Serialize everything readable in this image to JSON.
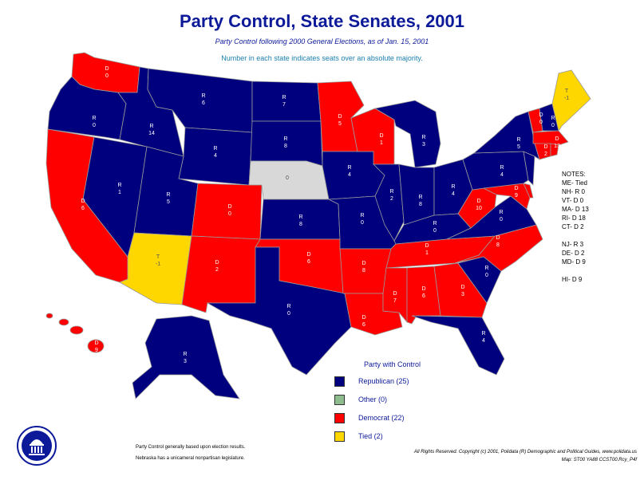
{
  "title": "Party Control, State Senates, 2001",
  "subtitle": "Party Control following 2000 General Elections, as of Jan. 15, 2001",
  "subnote": "Number in each state indicates seats over an absolute majority.",
  "colors": {
    "republican": "#00007f",
    "democrat": "#ff0000",
    "tied": "#ffd700",
    "other": "#d8d8d8",
    "title": "#0c1a9a"
  },
  "states": {
    "WA": {
      "party": "D",
      "margin": "0"
    },
    "OR": {
      "party": "R",
      "margin": "0"
    },
    "CA": {
      "party": "D",
      "margin": "6"
    },
    "NV": {
      "party": "R",
      "margin": "1"
    },
    "ID": {
      "party": "R",
      "margin": "14"
    },
    "MT": {
      "party": "R",
      "margin": "6"
    },
    "WY": {
      "party": "R",
      "margin": "4"
    },
    "UT": {
      "party": "R",
      "margin": "5"
    },
    "AZ": {
      "party": "T",
      "margin": "-1"
    },
    "CO": {
      "party": "D",
      "margin": "0"
    },
    "NM": {
      "party": "D",
      "margin": "2"
    },
    "ND": {
      "party": "R",
      "margin": "7"
    },
    "SD": {
      "party": "R",
      "margin": "8"
    },
    "NE": {
      "party": "",
      "margin": "0"
    },
    "KS": {
      "party": "R",
      "margin": "8"
    },
    "OK": {
      "party": "D",
      "margin": "6"
    },
    "TX": {
      "party": "R",
      "margin": "0"
    },
    "MN": {
      "party": "D",
      "margin": "5"
    },
    "IA": {
      "party": "R",
      "margin": "4"
    },
    "MO": {
      "party": "R",
      "margin": "0"
    },
    "AR": {
      "party": "D",
      "margin": "8"
    },
    "LA": {
      "party": "D",
      "margin": "6"
    },
    "WI": {
      "party": "D",
      "margin": "1"
    },
    "IL": {
      "party": "R",
      "margin": "2"
    },
    "MI": {
      "party": "R",
      "margin": "3"
    },
    "IN": {
      "party": "R",
      "margin": "8"
    },
    "OH": {
      "party": "R",
      "margin": "4"
    },
    "KY": {
      "party": "R",
      "margin": "0"
    },
    "TN": {
      "party": "D",
      "margin": "1"
    },
    "MS": {
      "party": "D",
      "margin": "7"
    },
    "AL": {
      "party": "D",
      "margin": "6"
    },
    "GA": {
      "party": "D",
      "margin": "3"
    },
    "FL": {
      "party": "R",
      "margin": "4"
    },
    "SC": {
      "party": "R",
      "margin": "0"
    },
    "NC": {
      "party": "D",
      "margin": "8"
    },
    "VA": {
      "party": "R",
      "margin": "0"
    },
    "WV": {
      "party": "D",
      "margin": "10"
    },
    "MD": {
      "party": "D",
      "margin": "9"
    },
    "PA": {
      "party": "R",
      "margin": "4"
    },
    "NY": {
      "party": "R",
      "margin": "5"
    },
    "VT": {
      "party": "D",
      "margin": "0"
    },
    "NH": {
      "party": "R",
      "margin": "0"
    },
    "ME": {
      "party": "T",
      "margin": "-1"
    },
    "MA": {
      "party": "D",
      "margin": "13"
    },
    "CT": {
      "party": "D",
      "margin": "2"
    },
    "AK": {
      "party": "R",
      "margin": "3"
    },
    "HI": {
      "party": "D",
      "margin": "9"
    }
  },
  "notes": {
    "heading": "NOTES:",
    "items": [
      "ME- Tied",
      "NH- R 0",
      "VT- D 0",
      "MA- D 13",
      "RI- D 18",
      "CT- D 2",
      "NJ- R 3",
      "DE- D 2",
      "MD- D 9",
      "HI- D 9"
    ]
  },
  "legend": {
    "title": "Party with Control",
    "items": [
      {
        "label": "Republican (25)",
        "color": "#00007f"
      },
      {
        "label": "Other (0)",
        "color": "#8fbc8f"
      },
      {
        "label": "Democrat (22)",
        "color": "#ff0000"
      },
      {
        "label": "Tied (2)",
        "color": "#ffd700"
      }
    ]
  },
  "footnotes": {
    "line1": "Party Control generally based upon election results.",
    "line2": "Nebraska has a unicameral nonpartisan legislature."
  },
  "copyright": {
    "line1": "All Rights Reserved. Copyright (c) 2001, Polidata (R) Demographic and Political Guides, www.polidata.us",
    "line2": "Map: ST00 YA88 CCST00.Rcy_P4f"
  }
}
